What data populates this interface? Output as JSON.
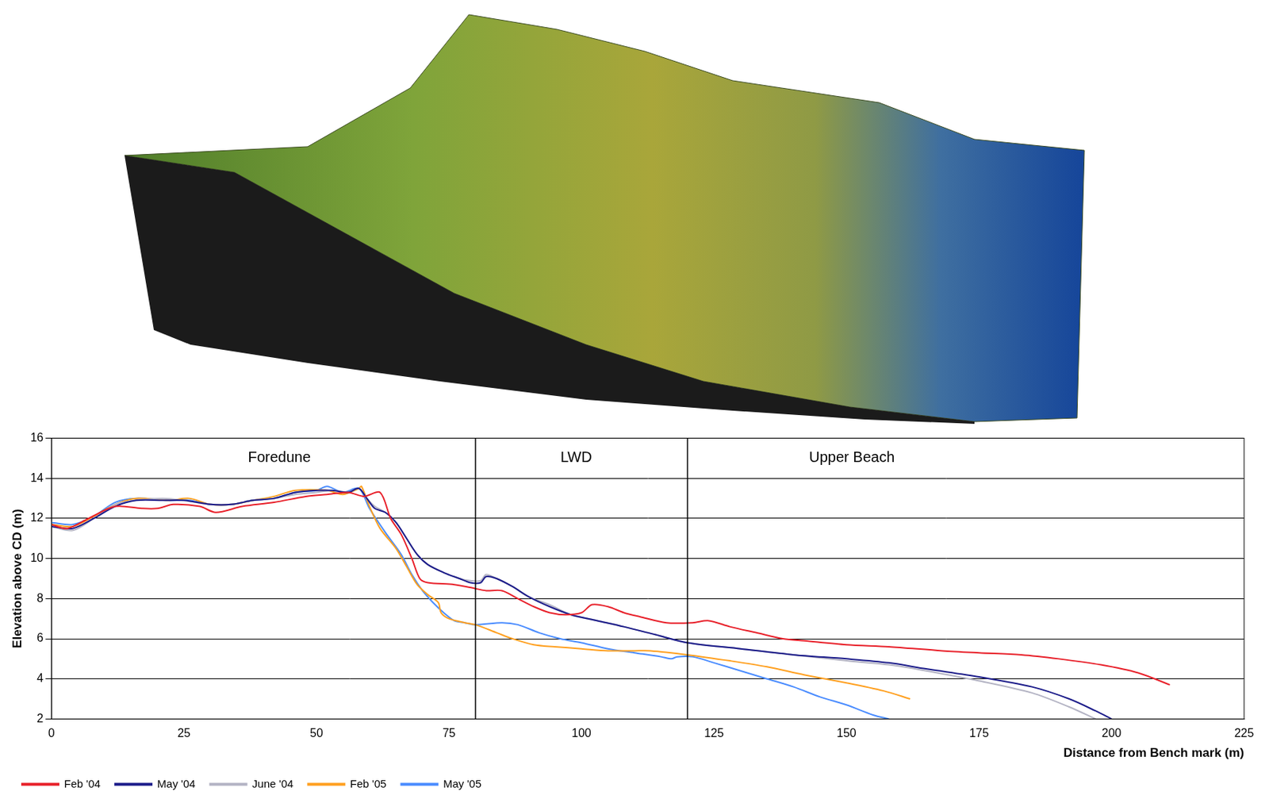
{
  "chart_data": {
    "type": "line",
    "x_label": "Distance from Bench mark (m)",
    "y_label": "Elevation above CD (m)",
    "xlim": [
      0,
      225
    ],
    "xticks": [
      0,
      25,
      50,
      75,
      100,
      125,
      150,
      175,
      200,
      225
    ],
    "ylim": [
      2,
      16
    ],
    "yticks": [
      2,
      4,
      6,
      8,
      10,
      12,
      14,
      16
    ],
    "grid": "y",
    "legend": "bottom",
    "boundaries": [
      80,
      120
    ],
    "annotations": [
      {
        "text": "Foredune",
        "x": 43,
        "y": 15
      },
      {
        "text": "LWD",
        "x": 99,
        "y": 15
      },
      {
        "text": "Upper Beach",
        "x": 151,
        "y": 15
      }
    ],
    "series": [
      {
        "name": "Feb '04",
        "color": "#e8202a",
        "x": [
          0,
          3,
          7,
          12,
          17,
          20,
          23,
          28,
          31,
          36,
          42,
          48,
          52,
          56,
          59,
          62,
          64,
          66,
          68,
          69.5,
          71,
          76,
          80,
          82,
          85,
          88,
          91,
          94,
          97,
          100,
          102,
          105,
          108,
          111,
          116,
          121,
          124,
          128,
          133,
          138,
          142,
          150,
          158,
          168,
          175,
          183,
          190,
          198,
          205,
          211
        ],
        "values": [
          11.7,
          11.5,
          12.0,
          12.6,
          12.5,
          12.5,
          12.7,
          12.6,
          12.3,
          12.6,
          12.8,
          13.1,
          13.2,
          13.3,
          13.1,
          13.3,
          12.0,
          11.2,
          10.0,
          9.0,
          8.8,
          8.7,
          8.5,
          8.4,
          8.4,
          8.0,
          7.6,
          7.3,
          7.2,
          7.3,
          7.7,
          7.6,
          7.3,
          7.1,
          6.8,
          6.8,
          6.9,
          6.6,
          6.3,
          6.0,
          5.9,
          5.7,
          5.6,
          5.4,
          5.3,
          5.2,
          5.0,
          4.7,
          4.3,
          3.7
        ]
      },
      {
        "name": "May '04",
        "color": "#1c1c8a",
        "x": [
          0,
          4,
          8,
          12,
          16,
          21,
          25,
          30,
          34,
          38,
          42,
          46,
          50,
          53,
          56,
          58,
          59.5,
          61,
          63,
          65,
          67,
          69,
          71,
          74,
          77,
          79,
          81,
          82,
          84,
          87,
          90,
          94,
          98,
          103,
          108,
          114,
          120,
          130,
          140,
          150,
          158,
          165,
          175,
          185,
          192,
          197,
          200
        ],
        "values": [
          11.6,
          11.5,
          12.0,
          12.6,
          12.9,
          12.9,
          12.9,
          12.7,
          12.7,
          12.9,
          13.0,
          13.3,
          13.4,
          13.4,
          13.3,
          13.5,
          13.0,
          12.5,
          12.3,
          11.8,
          11.0,
          10.2,
          9.7,
          9.3,
          9.0,
          8.8,
          8.8,
          9.1,
          9.0,
          8.6,
          8.1,
          7.6,
          7.2,
          6.9,
          6.6,
          6.2,
          5.8,
          5.5,
          5.2,
          5.0,
          4.8,
          4.5,
          4.1,
          3.6,
          3.0,
          2.4,
          2.0
        ]
      },
      {
        "name": "June '04",
        "color": "#b4b4c4",
        "x": [
          0,
          4,
          8,
          12,
          16,
          21,
          25,
          30,
          34,
          38,
          42,
          46,
          50,
          53,
          56,
          58,
          59.5,
          61,
          63,
          65,
          67,
          69,
          71,
          74,
          77,
          79,
          81,
          82,
          84,
          87,
          90,
          94,
          98,
          103,
          108,
          114,
          120,
          130,
          140,
          150,
          158,
          165,
          175,
          185,
          192,
          197
        ],
        "values": [
          11.6,
          11.4,
          12.0,
          12.7,
          12.9,
          13.0,
          12.9,
          12.7,
          12.7,
          12.9,
          13.0,
          13.2,
          13.3,
          13.4,
          13.3,
          13.5,
          13.0,
          12.6,
          12.3,
          11.8,
          11.0,
          10.2,
          9.7,
          9.3,
          9.0,
          8.9,
          8.9,
          9.2,
          9.0,
          8.6,
          8.1,
          7.7,
          7.2,
          6.9,
          6.6,
          6.2,
          5.8,
          5.5,
          5.2,
          4.9,
          4.7,
          4.4,
          3.9,
          3.3,
          2.6,
          2.0
        ]
      },
      {
        "name": "Feb '05",
        "color": "#ffa020",
        "x": [
          0,
          4,
          8,
          12,
          16,
          22,
          26,
          30,
          34,
          38,
          42,
          46,
          52,
          55,
          58,
          58.5,
          60,
          62,
          65,
          67,
          69,
          71,
          73,
          73.5,
          75,
          78,
          80,
          84,
          87,
          91,
          95,
          100,
          105,
          110,
          113,
          120,
          128,
          135,
          142,
          150,
          157,
          162
        ],
        "values": [
          11.7,
          11.6,
          12.1,
          12.7,
          13.0,
          12.9,
          13.0,
          12.7,
          12.7,
          12.9,
          13.1,
          13.4,
          13.4,
          13.2,
          13.5,
          13.6,
          12.6,
          11.5,
          10.5,
          9.6,
          8.7,
          8.2,
          7.8,
          7.3,
          7.0,
          6.8,
          6.7,
          6.3,
          6.0,
          5.7,
          5.6,
          5.5,
          5.4,
          5.4,
          5.4,
          5.2,
          4.9,
          4.6,
          4.2,
          3.8,
          3.4,
          3.0
        ]
      },
      {
        "name": "May '05",
        "color": "#4a8cff",
        "x": [
          0,
          4,
          8,
          12,
          16,
          22,
          26,
          30,
          34,
          38,
          42,
          46,
          50,
          52,
          55,
          58,
          60,
          63,
          66,
          68,
          70,
          72,
          74,
          76,
          78,
          80,
          85,
          88,
          92,
          96,
          100,
          105,
          110,
          115,
          117,
          118,
          121,
          125,
          130,
          135,
          140,
          145,
          150,
          155,
          158
        ],
        "values": [
          11.8,
          11.7,
          12.1,
          12.8,
          13.0,
          12.9,
          12.9,
          12.7,
          12.7,
          12.9,
          13.0,
          13.3,
          13.4,
          13.6,
          13.3,
          13.5,
          12.5,
          11.3,
          10.2,
          9.2,
          8.4,
          7.8,
          7.3,
          6.9,
          6.8,
          6.7,
          6.8,
          6.7,
          6.3,
          6.0,
          5.8,
          5.5,
          5.3,
          5.1,
          5.0,
          5.1,
          5.1,
          4.8,
          4.4,
          4.0,
          3.6,
          3.1,
          2.7,
          2.2,
          2.0
        ]
      }
    ]
  }
}
